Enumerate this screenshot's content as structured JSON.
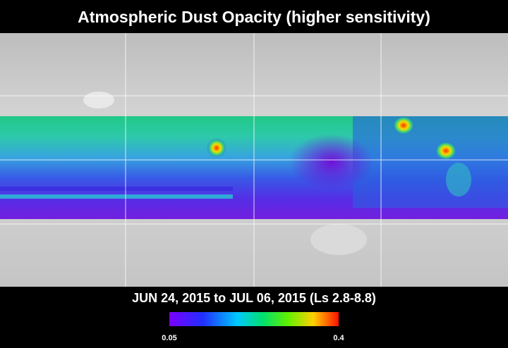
{
  "title": "Atmospheric Dust Opacity (higher sensitivity)",
  "subtitle": "JUN 24, 2015 to JUL 06, 2015 (Ls 2.8-8.8)",
  "colorbar": {
    "min": 0.05,
    "max": 0.4
  }
}
